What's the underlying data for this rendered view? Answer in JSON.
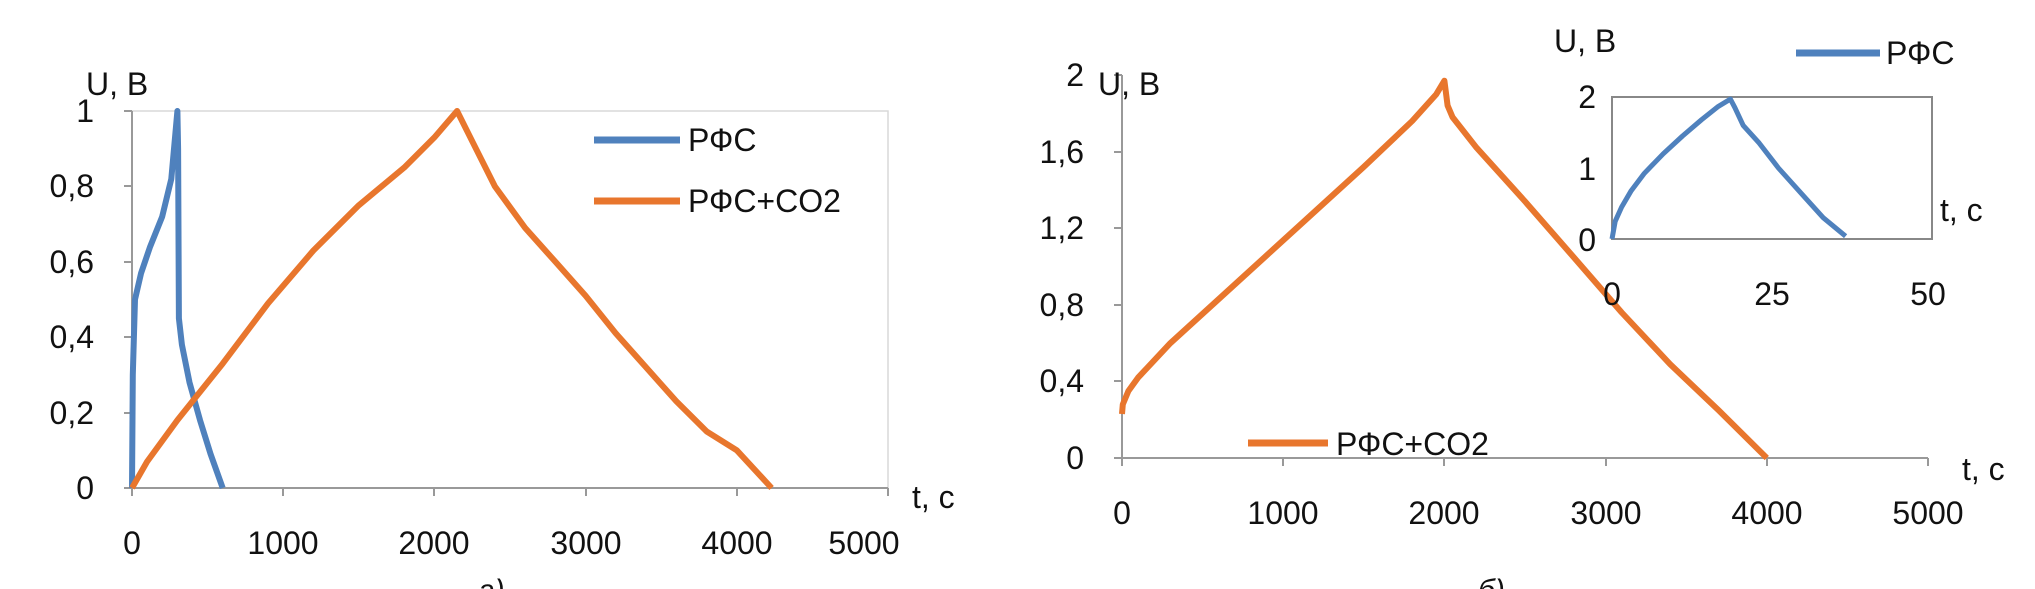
{
  "colors": {
    "series_blue": "#4f81bd",
    "series_orange": "#e8762d",
    "axis": "#999999",
    "frame": "#888888"
  },
  "panel_labels": [
    "а)",
    "б)"
  ],
  "chart_data": [
    {
      "type": "line",
      "panel": "а)",
      "ylabel": "U, В",
      "xlabel": "t, с",
      "xlim": [
        0,
        5000
      ],
      "ylim": [
        0,
        1
      ],
      "x_ticks": [
        "0",
        "1000",
        "2000",
        "3000",
        "4000",
        "5000"
      ],
      "x_tick_values": [
        0,
        1000,
        2000,
        3000,
        4000,
        5000
      ],
      "y_ticks": [
        "0",
        "0,2",
        "0,4",
        "0,6",
        "0,8",
        "1"
      ],
      "y_tick_values": [
        0,
        0.2,
        0.4,
        0.6,
        0.8,
        1
      ],
      "legend_position": "top-right",
      "series": [
        {
          "name": "РФС",
          "color": "#4f81bd",
          "x": [
            0,
            5,
            20,
            60,
            120,
            200,
            260,
            300,
            305,
            310,
            330,
            380,
            450,
            520,
            600
          ],
          "y": [
            0,
            0.3,
            0.5,
            0.57,
            0.64,
            0.72,
            0.82,
            1.0,
            0.9,
            0.45,
            0.38,
            0.28,
            0.18,
            0.09,
            0
          ]
        },
        {
          "name": "РФС+CO2",
          "color": "#e8762d",
          "x": [
            0,
            100,
            300,
            600,
            900,
            1200,
            1500,
            1800,
            2000,
            2150,
            2250,
            2400,
            2600,
            2800,
            3000,
            3200,
            3400,
            3600,
            3800,
            4000,
            4230
          ],
          "y": [
            0,
            0.07,
            0.18,
            0.33,
            0.49,
            0.63,
            0.75,
            0.85,
            0.93,
            1.0,
            0.92,
            0.8,
            0.69,
            0.6,
            0.51,
            0.41,
            0.32,
            0.23,
            0.15,
            0.1,
            0
          ]
        }
      ]
    },
    {
      "type": "line",
      "panel": "б)",
      "ylabel": "U, В",
      "xlabel": "t, с",
      "xlim": [
        0,
        5000
      ],
      "ylim": [
        0,
        2
      ],
      "x_ticks": [
        "0",
        "1000",
        "2000",
        "3000",
        "4000",
        "5000"
      ],
      "x_tick_values": [
        0,
        1000,
        2000,
        3000,
        4000,
        5000
      ],
      "y_ticks": [
        "0",
        "0,4",
        "0,8",
        "1,2",
        "1,6",
        "2"
      ],
      "y_tick_values": [
        0,
        0.4,
        0.8,
        1.2,
        1.6,
        2
      ],
      "legend_position": "bottom-left",
      "series": [
        {
          "name": "РФС+CO2",
          "color": "#e8762d",
          "x": [
            0,
            5,
            40,
            100,
            300,
            600,
            900,
            1200,
            1500,
            1800,
            1950,
            2000,
            2020,
            2050,
            2200,
            2500,
            2800,
            3100,
            3400,
            3700,
            4000
          ],
          "y": [
            0.23,
            0.28,
            0.35,
            0.42,
            0.6,
            0.83,
            1.06,
            1.29,
            1.52,
            1.76,
            1.9,
            1.97,
            1.84,
            1.78,
            1.62,
            1.34,
            1.05,
            0.76,
            0.49,
            0.25,
            0
          ]
        }
      ],
      "inset": {
        "type": "line",
        "ylabel": "U, В",
        "xlabel": "t, с",
        "xlim": [
          0,
          50
        ],
        "ylim": [
          0,
          2
        ],
        "x_ticks": [
          "0",
          "25",
          "50"
        ],
        "x_tick_values": [
          0,
          25,
          50
        ],
        "y_ticks": [
          "0",
          "1",
          "2"
        ],
        "y_tick_values": [
          0,
          1,
          2
        ],
        "legend_position": "top-right",
        "series": [
          {
            "name": "РФС",
            "color": "#4f81bd",
            "x": [
              0,
              0.5,
              1.5,
              3,
              5,
              8,
              11,
              14,
              16.5,
              18.5,
              19.2,
              20.5,
              23,
              26,
              30,
              33,
              36.5
            ],
            "y": [
              0,
              0.25,
              0.45,
              0.68,
              0.92,
              1.2,
              1.45,
              1.68,
              1.86,
              1.97,
              1.85,
              1.6,
              1.35,
              1.0,
              0.6,
              0.3,
              0.04
            ]
          }
        ]
      }
    }
  ]
}
